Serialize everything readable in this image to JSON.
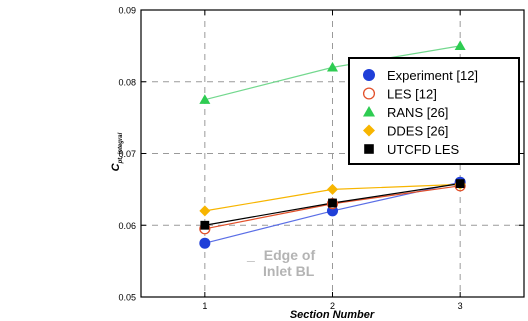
{
  "side_note": {
    "dash": "_",
    "line1": "Edge of",
    "line2": "Inlet BL"
  },
  "chart_data": {
    "type": "line",
    "title": "",
    "xlabel": "Section Number",
    "ylabel": "C",
    "ylabel_subscript": "pt, integral",
    "x": [
      1,
      2,
      3
    ],
    "xticks": [
      "1",
      "2",
      "3"
    ],
    "xlim": [
      0.5,
      3.5
    ],
    "ylim": [
      0.05,
      0.09
    ],
    "yticks": [
      "0.05",
      "0.06",
      "0.07",
      "0.08",
      "0.09"
    ],
    "grid": true,
    "legend_position": "top-right",
    "series": [
      {
        "name": "Experiment [12]",
        "marker": "circle-filled",
        "color": "#1f3fd8",
        "line_color": "#5a6ee6",
        "values": [
          0.0575,
          0.062,
          0.066
        ]
      },
      {
        "name": "LES [12]",
        "marker": "circle-open",
        "color": "#e2502a",
        "line_color": "#e2502a",
        "values": [
          0.0595,
          0.063,
          0.0655
        ]
      },
      {
        "name": "RANS [26]",
        "marker": "triangle",
        "color": "#2ecc52",
        "line_color": "#73d88e",
        "values": [
          0.0775,
          0.082,
          0.085
        ]
      },
      {
        "name": "DDES [26]",
        "marker": "diamond",
        "color": "#f7b500",
        "line_color": "#f7b500",
        "values": [
          0.062,
          0.065,
          0.0657
        ]
      },
      {
        "name": "UTCFD LES",
        "marker": "square",
        "color": "#000000",
        "line_color": "#000000",
        "values": [
          0.06,
          0.0631,
          0.0658
        ]
      }
    ]
  }
}
